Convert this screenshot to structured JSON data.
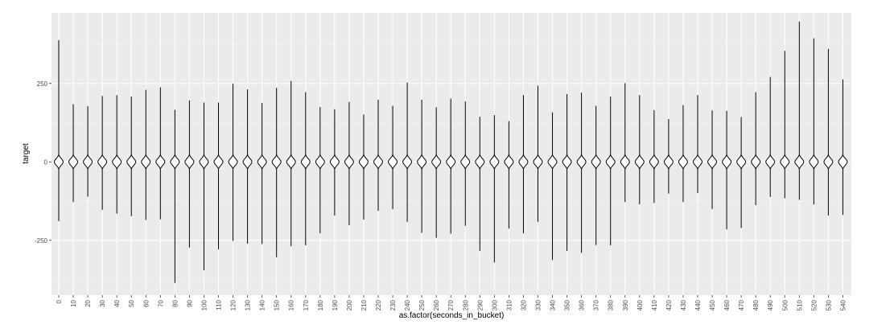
{
  "chart_data": {
    "type": "violin",
    "xlabel": "as.factor(seconds_in_bucket)",
    "ylabel": "target",
    "ylim": [
      -425,
      475
    ],
    "y_ticks": [
      -250,
      0,
      250
    ],
    "grid": true,
    "legend": "none",
    "colors": {
      "panel_background": "#ebebeb",
      "grid_major": "#ffffff",
      "grid_minor": "#f5f5f5",
      "violin_outline": "#000000",
      "violin_fill": "#ffffff"
    },
    "categories": [
      "0",
      "10",
      "20",
      "30",
      "40",
      "50",
      "60",
      "70",
      "80",
      "90",
      "100",
      "110",
      "120",
      "130",
      "140",
      "150",
      "160",
      "170",
      "180",
      "190",
      "200",
      "210",
      "220",
      "230",
      "240",
      "250",
      "260",
      "270",
      "280",
      "290",
      "300",
      "310",
      "320",
      "330",
      "340",
      "350",
      "360",
      "370",
      "380",
      "390",
      "400",
      "410",
      "420",
      "430",
      "440",
      "450",
      "460",
      "470",
      "480",
      "490",
      "500",
      "510",
      "520",
      "530",
      "540"
    ],
    "max": [
      387,
      183,
      177,
      209,
      212,
      207,
      229,
      237,
      165,
      195,
      188,
      188,
      248,
      230,
      187,
      235,
      257,
      221,
      174,
      167,
      190,
      150,
      197,
      178,
      252,
      197,
      173,
      201,
      192,
      143,
      148,
      129,
      212,
      242,
      157,
      215,
      220,
      178,
      207,
      250,
      212,
      164,
      136,
      180,
      212,
      163,
      162,
      142,
      221,
      270,
      353,
      446,
      393,
      359,
      262
    ],
    "min": [
      -188,
      -127,
      -110,
      -152,
      -164,
      -172,
      -184,
      -182,
      -385,
      -272,
      -345,
      -278,
      -251,
      -260,
      -261,
      -303,
      -268,
      -265,
      -227,
      -170,
      -201,
      -183,
      -155,
      -150,
      -190,
      -225,
      -241,
      -228,
      -203,
      -283,
      -320,
      -212,
      -227,
      -190,
      -312,
      -283,
      -289,
      -264,
      -265,
      -127,
      -134,
      -130,
      -100,
      -127,
      -98,
      -149,
      -214,
      -210,
      -137,
      -111,
      -115,
      -120,
      -135,
      -170,
      -168
    ],
    "median": [
      0,
      0,
      0,
      0,
      0,
      0,
      0,
      0,
      0,
      0,
      0,
      0,
      0,
      0,
      0,
      0,
      0,
      0,
      0,
      0,
      0,
      0,
      0,
      0,
      0,
      0,
      0,
      0,
      0,
      0,
      0,
      0,
      0,
      0,
      0,
      0,
      0,
      0,
      0,
      0,
      0,
      0,
      0,
      0,
      0,
      0,
      0,
      0,
      0,
      0,
      0,
      0,
      0,
      0,
      0
    ]
  }
}
